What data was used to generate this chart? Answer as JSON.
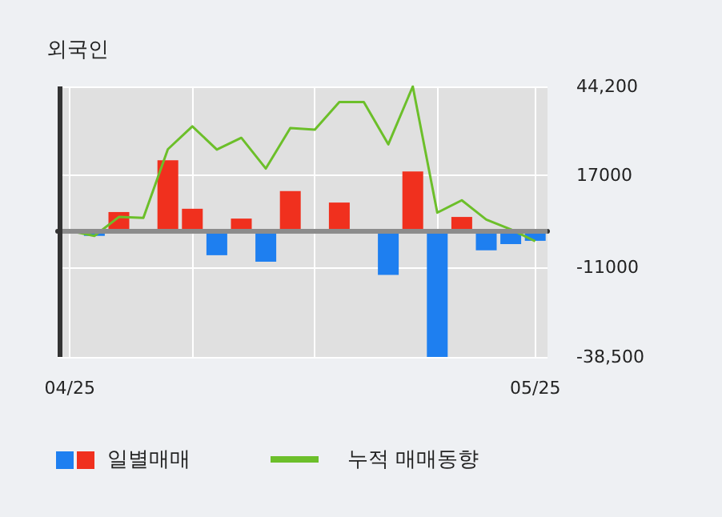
{
  "chart_data": {
    "type": "bar",
    "title": "외국인",
    "categories": [
      "04/25",
      null,
      null,
      null,
      null,
      null,
      null,
      null,
      null,
      null,
      null,
      null,
      null,
      null,
      null,
      null,
      null,
      null,
      null,
      "05/25"
    ],
    "series": [
      {
        "name": "일별매매",
        "values": [
          0,
          -1500,
          5800,
          0,
          21600,
          6800,
          -7400,
          3800,
          -9400,
          12200,
          0,
          8700,
          0,
          -13400,
          18200,
          -38500,
          4300,
          -5900,
          -4000,
          -3000
        ],
        "colors": [
          "#f0301e",
          "#1e7ff0",
          "#f0301e",
          "#f0301e",
          "#f0301e",
          "#f0301e",
          "#1e7ff0",
          "#f0301e",
          "#1e7ff0",
          "#f0301e",
          "#f0301e",
          "#f0301e",
          "#f0301e",
          "#1e7ff0",
          "#f0301e",
          "#1e7ff0",
          "#f0301e",
          "#1e7ff0",
          "#1e7ff0",
          "#1e7ff0"
        ]
      },
      {
        "type": "line",
        "name": "누적 매매동향",
        "color": "#6cbf2a",
        "values": [
          0,
          -1500,
          4300,
          4000,
          25000,
          32000,
          24900,
          28500,
          19100,
          31500,
          31000,
          39400,
          39400,
          26500,
          44200,
          5600,
          9400,
          3500,
          500,
          -3100
        ]
      }
    ],
    "ylim": [
      -38500,
      44200
    ],
    "yticks": [
      {
        "value": 44200,
        "label": "44,200"
      },
      17000,
      -11000,
      {
        "value": -38500,
        "label": "-38,500"
      }
    ],
    "ref_lines": [
      {
        "axis": "y",
        "value": 0,
        "color": "#8c8c8c"
      }
    ],
    "grid": true,
    "legend": "bottom",
    "marker": "none",
    "line_style": "solid"
  }
}
